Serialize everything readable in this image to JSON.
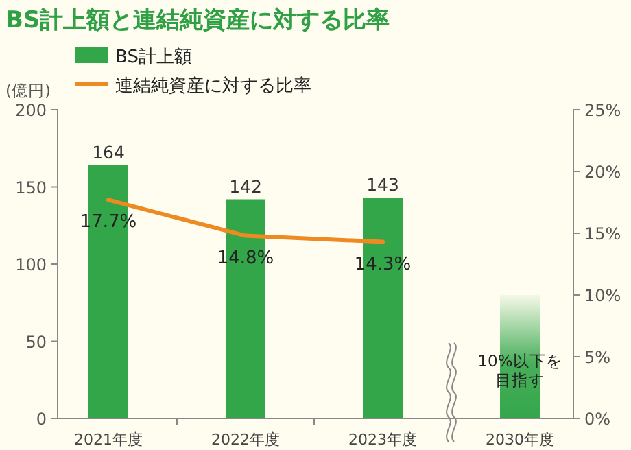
{
  "chart_data": {
    "type": "bar",
    "title": "BS計上額と連結純資産に対する比率",
    "ylabel": "(億円)",
    "categories": [
      "2021年度",
      "2022年度",
      "2023年度",
      "2030年度"
    ],
    "series": [
      {
        "name": "BS計上額",
        "color": "#34a64a",
        "values": [
          164,
          142,
          143,
          null
        ],
        "value_labels": [
          "164",
          "142",
          "143",
          null
        ]
      },
      {
        "name": "連結純資産に対する比率",
        "type": "line",
        "axis": "y2",
        "color": "#ed8a22",
        "values": [
          17.7,
          14.8,
          14.3,
          null
        ],
        "value_labels": [
          "17.7%",
          "14.8%",
          "14.3%",
          null
        ]
      },
      {
        "axis": "y2",
        "color": "#34a64a",
        "values": [
          null,
          null,
          null,
          10
        ]
      }
    ],
    "ylim": [
      0,
      200
    ],
    "yticks": [
      0,
      50,
      100,
      150,
      200
    ],
    "y2lim": [
      0,
      25
    ],
    "y2ticks": [
      {
        "value": 0,
        "label": "0%"
      },
      {
        "value": 5,
        "label": "5%"
      },
      {
        "value": 10,
        "label": "10%"
      },
      {
        "value": 15,
        "label": "15%"
      },
      {
        "value": 20,
        "label": "20%"
      },
      {
        "value": 25,
        "label": "25%"
      }
    ],
    "legend": "top left",
    "annotations": [
      "10%以下を目指す"
    ]
  }
}
